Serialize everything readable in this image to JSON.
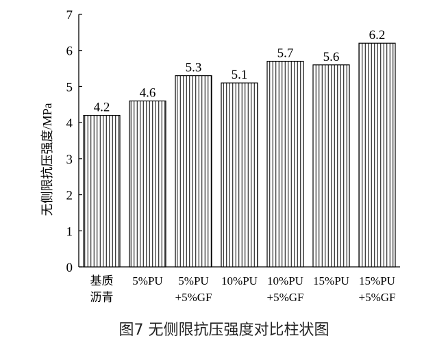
{
  "caption": "图7 无侧限抗压强度对比柱状图",
  "chart_data": {
    "type": "bar",
    "categories": [
      [
        "基质",
        "沥青"
      ],
      [
        "5%PU"
      ],
      [
        "5%PU",
        "+5%GF"
      ],
      [
        "10%PU"
      ],
      [
        "10%PU",
        "+5%GF"
      ],
      [
        "15%PU"
      ],
      [
        "15%PU",
        "+5%GF"
      ]
    ],
    "values": [
      4.2,
      4.6,
      5.3,
      5.1,
      5.7,
      5.6,
      6.2
    ],
    "value_labels": [
      "4.2",
      "4.6",
      "5.3",
      "5.1",
      "5.7",
      "5.6",
      "6.2"
    ],
    "ylabel": "无侧限抗压强度/MPa",
    "ylim": [
      0,
      7
    ],
    "yticks": [
      0,
      1,
      2,
      3,
      4,
      5,
      6,
      7
    ],
    "bar_fill": "vertical-hatch",
    "bar_color": "#000000",
    "grid": false
  }
}
